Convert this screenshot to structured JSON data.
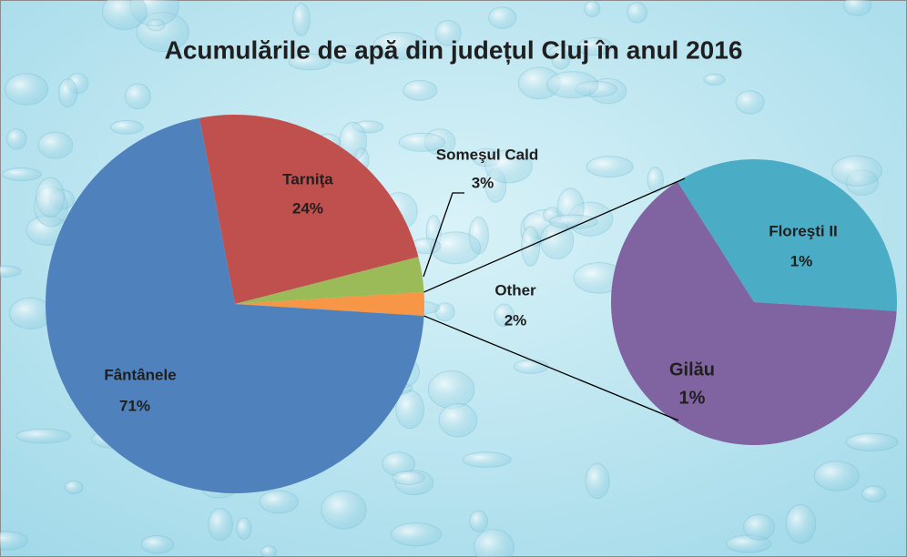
{
  "chart_data": {
    "type": "pie-of-pie",
    "title": "Acumulările de apă din județul Cluj în anul 2016",
    "categories": [
      "Tarniţa",
      "Someşul Cald",
      "Other",
      "Fântânele"
    ],
    "values": [
      24,
      3,
      2,
      71
    ],
    "value_labels": [
      "24%",
      "3%",
      "2%",
      "71%"
    ],
    "colors": [
      "#c0504d",
      "#9bbb59",
      "#f79646",
      "#4f81bd"
    ],
    "secondary": {
      "categories": [
        "Floreşti II",
        "Gilău"
      ],
      "values": [
        0.7,
        1.3
      ],
      "value_labels": [
        "1%",
        "1%"
      ],
      "colors": [
        "#4bacc6",
        "#8064a2"
      ]
    }
  }
}
